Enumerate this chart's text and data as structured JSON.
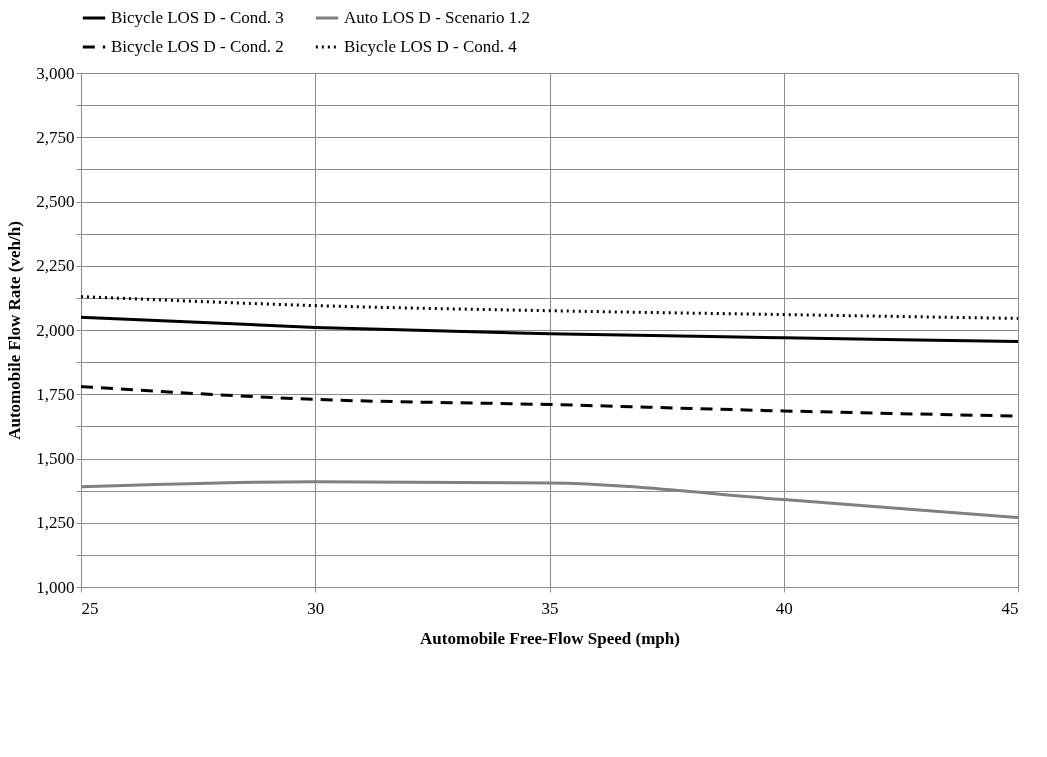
{
  "chart_data": {
    "type": "line",
    "xlabel": "Automobile Free-Flow Speed (mph)",
    "ylabel": "Automobile Flow Rate (veh/h)",
    "x": [
      25,
      30,
      35,
      40,
      45
    ],
    "series": [
      {
        "name": "Bicycle LOS D - Cond. 3",
        "color": "#000000",
        "line_style": "solid",
        "values": [
          2050,
          2010,
          1985,
          1970,
          1955
        ]
      },
      {
        "name": "Auto LOS D -  Scenario 1.2",
        "color": "#808080",
        "line_style": "solid",
        "values": [
          1390,
          1410,
          1405,
          1340,
          1270
        ]
      },
      {
        "name": "Bicycle LOS D - Cond. 2",
        "color": "#000000",
        "line_style": "dashed",
        "values": [
          1780,
          1730,
          1710,
          1685,
          1665
        ]
      },
      {
        "name": "Bicycle LOS D - Cond. 4",
        "color": "#000000",
        "line_style": "dotted",
        "values": [
          2130,
          2095,
          2075,
          2060,
          2045
        ]
      }
    ],
    "xlim": [
      25,
      45
    ],
    "xticks": [
      25,
      30,
      35,
      40,
      45
    ],
    "ylim": [
      1000,
      3000
    ],
    "yticks": [
      {
        "value": 1000,
        "label": "1,000"
      },
      {
        "value": 1125,
        "label": null
      },
      {
        "value": 1250,
        "label": "1,250"
      },
      {
        "value": 1375,
        "label": null
      },
      {
        "value": 1500,
        "label": "1,500"
      },
      {
        "value": 1625,
        "label": null
      },
      {
        "value": 1750,
        "label": "1,750"
      },
      {
        "value": 1875,
        "label": null
      },
      {
        "value": 2000,
        "label": "2,000"
      },
      {
        "value": 2125,
        "label": null
      },
      {
        "value": 2250,
        "label": "2,250"
      },
      {
        "value": 2375,
        "label": null
      },
      {
        "value": 2500,
        "label": "2,500"
      },
      {
        "value": 2625,
        "label": null
      },
      {
        "value": 2750,
        "label": "2,750"
      },
      {
        "value": 2875,
        "label": null
      },
      {
        "value": 3000,
        "label": "3,000"
      }
    ],
    "grid": true,
    "legend": "top",
    "marker": "none"
  }
}
